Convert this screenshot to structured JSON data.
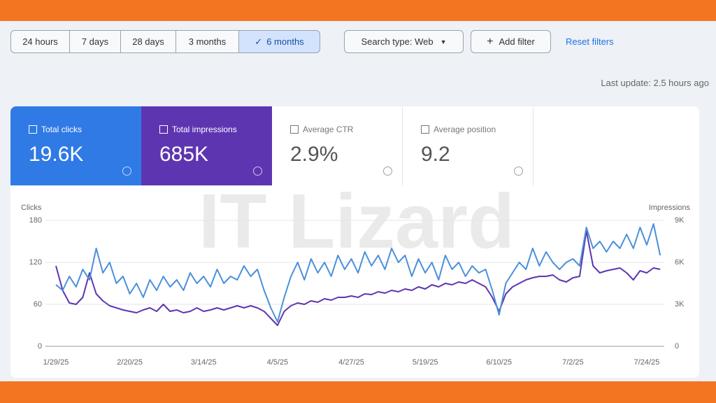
{
  "toolbar": {
    "ranges": [
      "24 hours",
      "7 days",
      "28 days",
      "3 months",
      "6 months"
    ],
    "search_type": "Search type: Web",
    "add_filter": "Add filter",
    "reset": "Reset filters"
  },
  "last_update": "Last update: 2.5 hours ago",
  "metrics": [
    {
      "label": "Total clicks",
      "value": "19.6K"
    },
    {
      "label": "Total impressions",
      "value": "685K"
    },
    {
      "label": "Average CTR",
      "value": "2.9%"
    },
    {
      "label": "Average position",
      "value": "9.2"
    }
  ],
  "watermark": "IT Lizard",
  "chart_data": {
    "type": "line",
    "y_label": "Clicks",
    "y2_label": "Impressions",
    "categories": [
      "1/29/25",
      null,
      null,
      null,
      null,
      null,
      null,
      null,
      null,
      null,
      null,
      "2/20/25",
      null,
      null,
      null,
      null,
      null,
      null,
      null,
      null,
      null,
      null,
      "3/14/25",
      null,
      null,
      null,
      null,
      null,
      null,
      null,
      null,
      null,
      null,
      "4/5/25",
      null,
      null,
      null,
      null,
      null,
      null,
      null,
      null,
      null,
      null,
      "4/27/25",
      null,
      null,
      null,
      null,
      null,
      null,
      null,
      null,
      null,
      null,
      "5/19/25",
      null,
      null,
      null,
      null,
      null,
      null,
      null,
      null,
      null,
      null,
      "6/10/25",
      null,
      null,
      null,
      null,
      null,
      null,
      null,
      null,
      null,
      null,
      "7/2/25",
      null,
      null,
      null,
      null,
      null,
      null,
      null,
      null,
      null,
      null,
      "7/24/25",
      null,
      null
    ],
    "series": [
      {
        "color": "#4a90d9",
        "values": [
          88,
          80,
          100,
          85,
          110,
          95,
          140,
          105,
          120,
          90,
          100,
          75,
          90,
          70,
          95,
          80,
          100,
          85,
          95,
          80,
          105,
          90,
          100,
          85,
          110,
          90,
          100,
          95,
          115,
          100,
          110,
          80,
          55,
          35,
          70,
          100,
          120,
          95,
          125,
          105,
          120,
          100,
          130,
          110,
          125,
          105,
          135,
          115,
          130,
          110,
          140,
          120,
          130,
          100,
          125,
          105,
          120,
          95,
          130,
          110,
          120,
          100,
          115,
          105,
          110,
          80,
          45,
          90,
          105,
          120,
          110,
          140,
          115,
          135,
          120,
          110,
          120,
          125,
          115,
          170,
          140,
          150,
          135,
          150,
          140,
          160,
          140,
          170,
          145,
          175,
          130
        ]
      },
      {
        "color": "#5e35b1",
        "axis": "y2",
        "values": [
          5750,
          4000,
          3100,
          3000,
          3500,
          5250,
          3750,
          3250,
          2900,
          2750,
          2600,
          2500,
          2400,
          2600,
          2750,
          2500,
          3000,
          2500,
          2600,
          2400,
          2500,
          2750,
          2500,
          2600,
          2750,
          2600,
          2750,
          2900,
          2750,
          2900,
          2750,
          2500,
          2000,
          1500,
          2500,
          2900,
          3100,
          3000,
          3250,
          3150,
          3400,
          3300,
          3500,
          3500,
          3600,
          3500,
          3750,
          3700,
          3900,
          3800,
          4000,
          3900,
          4100,
          4000,
          4250,
          4100,
          4400,
          4250,
          4500,
          4400,
          4600,
          4500,
          4750,
          4500,
          4250,
          3500,
          2500,
          3750,
          4250,
          4500,
          4750,
          4900,
          5000,
          5000,
          5100,
          4750,
          4600,
          4900,
          5000,
          8250,
          5750,
          5250,
          5400,
          5500,
          5600,
          5250,
          4750,
          5400,
          5250,
          5600,
          5500
        ]
      }
    ],
    "ylim": [
      0,
      180
    ],
    "yticks": [
      0,
      60,
      120,
      180
    ],
    "y2lim": [
      0,
      9000
    ],
    "y2ticks": [
      0,
      {
        "value": 3000,
        "label": "3K"
      },
      {
        "value": 6000,
        "label": "6K"
      },
      {
        "value": 9000,
        "label": "9K"
      }
    ],
    "grid": true
  }
}
